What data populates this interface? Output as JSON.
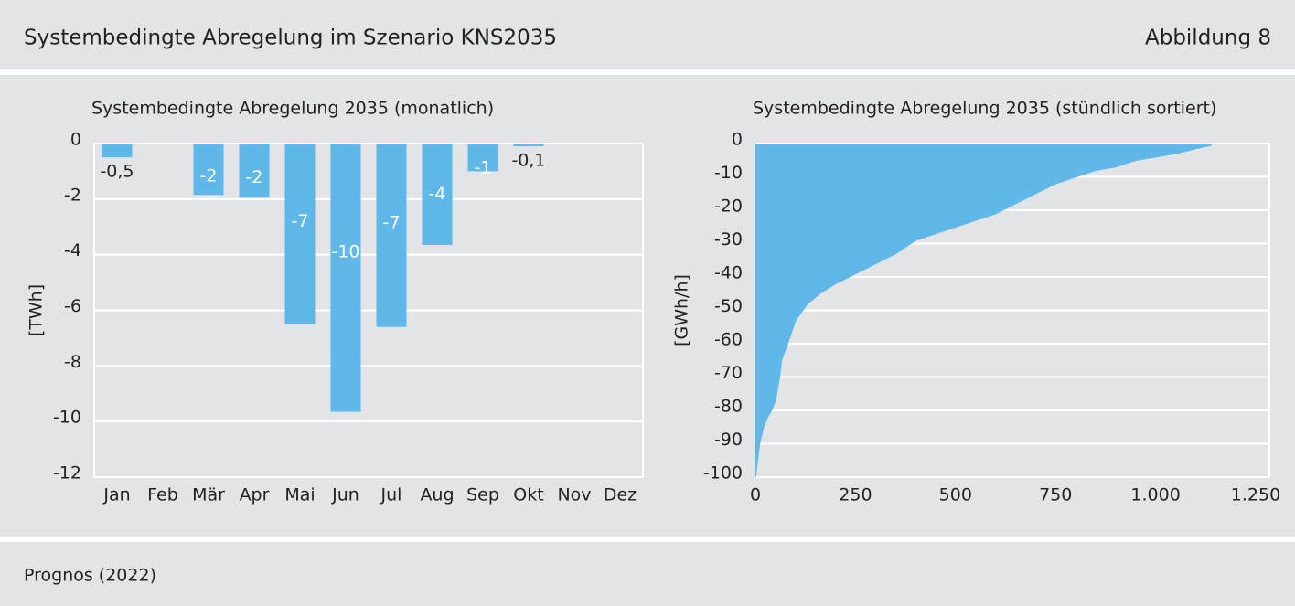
{
  "header": {
    "title": "Systembedingte Abregelung im Szenario KNS2035",
    "figure": "Abbildung 8"
  },
  "chart_data": [
    {
      "type": "bar",
      "title": "Systembedingte Abregelung 2035 (monatlich)",
      "y_label": "[TWh]",
      "categories": [
        "Jan",
        "Feb",
        "Mär",
        "Apr",
        "Mai",
        "Jun",
        "Jul",
        "Aug",
        "Sep",
        "Okt",
        "Nov",
        "Dez"
      ],
      "values": [
        -0.5,
        null,
        -1.85,
        -1.95,
        -6.5,
        -9.65,
        -6.6,
        -3.65,
        -1.0,
        -0.1,
        null,
        null
      ],
      "value_labels": [
        "-0,5",
        null,
        "-2",
        "-2",
        "-7",
        "-10",
        "-7",
        "-4",
        "-1",
        "-0,1",
        null,
        null
      ],
      "color": "#5fb8e8",
      "ylim": [
        -12,
        0
      ],
      "yticks": [
        0,
        -2,
        -4,
        -6,
        -8,
        -10,
        -12
      ],
      "grid": true
    },
    {
      "type": "area",
      "title": "Systembedingte Abregelung 2035 (stündlich sortiert)",
      "y_label": "[GWh/h]",
      "x": [
        0,
        3,
        10,
        20,
        30,
        40,
        50,
        60,
        65,
        80,
        100,
        130,
        160,
        200,
        250,
        300,
        350,
        400,
        450,
        500,
        550,
        600,
        650,
        700,
        750,
        800,
        850,
        900,
        950,
        1000,
        1050,
        1100,
        1140
      ],
      "values": [
        -100,
        -97,
        -90,
        -85,
        -82,
        -80,
        -77,
        -70,
        -65,
        -60,
        -53,
        -48,
        -45,
        -42,
        -39,
        -36,
        -33,
        -29,
        -27,
        -25,
        -23,
        -21,
        -18,
        -15,
        -12,
        -10,
        -8,
        -7,
        -5,
        -4,
        -3,
        -1.5,
        -0.5
      ],
      "color": "#5fb8e8",
      "xlim": [
        0,
        1250
      ],
      "ylim": [
        -100,
        0
      ],
      "xticks": [
        0,
        250,
        500,
        750,
        {
          "value": 1000,
          "label": "1.000"
        },
        {
          "value": 1250,
          "label": "1.250"
        }
      ],
      "yticks": [
        0,
        -10,
        -20,
        -30,
        -40,
        -50,
        -60,
        -70,
        -80,
        -90,
        -100
      ],
      "grid": true
    }
  ],
  "footer": {
    "source": "Prognos (2022)"
  }
}
